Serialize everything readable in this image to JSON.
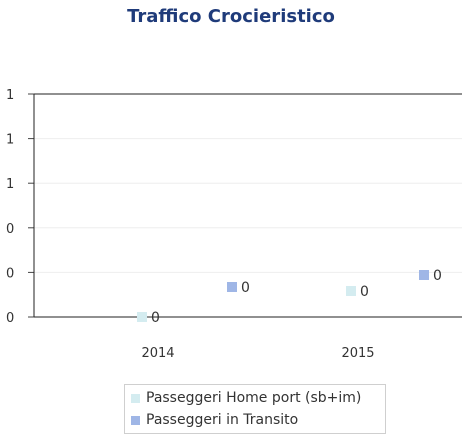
{
  "chart_data": {
    "type": "bar",
    "title": "Traffico Crocieristico",
    "categories": [
      "2014",
      "2015"
    ],
    "y_tick_labels": [
      "0",
      "0",
      "0",
      "1",
      "1",
      "1"
    ],
    "ylim": [
      0,
      1.25
    ],
    "grid": true,
    "legend_position": "bottom",
    "series": [
      {
        "name": "Passeggeri Home port (sb+im)",
        "values": [
          0,
          0
        ],
        "color": "#d4ecf0",
        "labels": [
          "0",
          "0"
        ]
      },
      {
        "name": "Passeggeri in Transito",
        "values": [
          0,
          0
        ],
        "color": "#9fb6e6",
        "labels": [
          "0",
          "0"
        ]
      }
    ]
  }
}
